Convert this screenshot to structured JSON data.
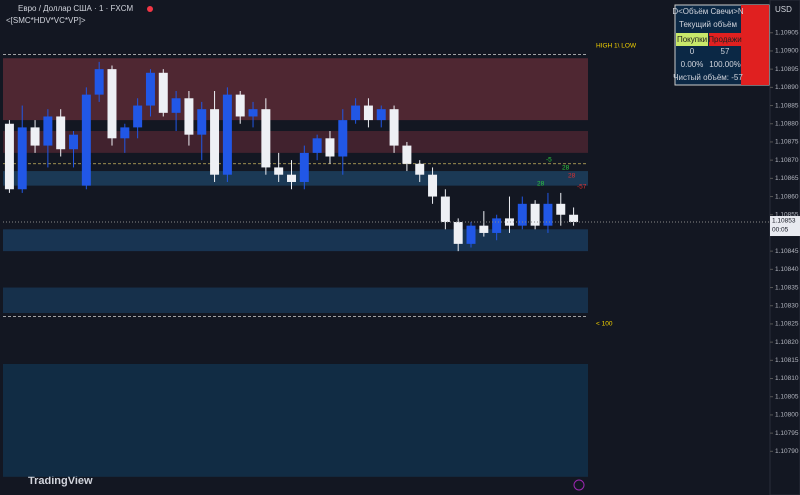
{
  "header": {
    "symbol": "Евро / Доллар США · 1 · FXCM",
    "indicator": "<[SMC*HDV*VC*VP]>"
  },
  "chart_data": {
    "type": "candlestick",
    "currency": "USD",
    "ylim": [
      1.10778,
      1.10914
    ],
    "yticks": [
      1.10905,
      {
        "value": 1.109,
        "label": "1.10900"
      },
      1.10895,
      {
        "value": 1.1089,
        "label": "1.10890"
      },
      1.10885,
      {
        "value": 1.1088,
        "label": "1.10880"
      },
      1.10875,
      {
        "value": 1.1087,
        "label": "1.10870"
      },
      1.10865,
      {
        "value": 1.1086,
        "label": "1.10860"
      },
      1.10855,
      {
        "value": 1.1085,
        "label": "1.10850"
      },
      1.10845,
      {
        "value": 1.1084,
        "label": "1.10840"
      },
      1.10835,
      {
        "value": 1.1083,
        "label": "1.10830"
      },
      1.10825,
      {
        "value": 1.1082,
        "label": "1.10820"
      },
      1.10815,
      {
        "value": 1.1081,
        "label": "1.10810"
      },
      1.10805,
      {
        "value": 1.108,
        "label": "1.10800"
      },
      1.10795,
      {
        "value": 1.1079,
        "label": "1.10790"
      }
    ],
    "open": [
      1.1088,
      1.10862,
      1.10879,
      1.10874,
      1.10882,
      1.10873,
      1.10863,
      1.10888,
      1.10895,
      1.10876,
      1.10879,
      1.10885,
      1.10894,
      1.10883,
      1.10887,
      1.10877,
      1.10884,
      1.10866,
      1.10888,
      1.10882,
      1.10884,
      1.10868,
      1.10866,
      1.10864,
      1.10872,
      1.10876,
      1.10871,
      1.10881,
      1.10885,
      1.10881,
      1.10884,
      1.10874,
      1.10869,
      1.10866,
      1.1086,
      1.10853,
      1.10847,
      1.10852,
      1.1085,
      1.10854,
      1.10852,
      1.10858,
      1.10852,
      1.10858,
      1.10855
    ],
    "high": [
      1.10881,
      1.10885,
      1.10881,
      1.10884,
      1.10884,
      1.10878,
      1.1089,
      1.10897,
      1.10896,
      1.1088,
      1.10887,
      1.10895,
      1.10895,
      1.10889,
      1.10889,
      1.10886,
      1.10889,
      1.1089,
      1.10889,
      1.10886,
      1.10887,
      1.10872,
      1.1087,
      1.10874,
      1.10877,
      1.10878,
      1.10884,
      1.10887,
      1.10887,
      1.10885,
      1.10885,
      1.10875,
      1.1087,
      1.10868,
      1.10862,
      1.10854,
      1.10853,
      1.10856,
      1.10855,
      1.1086,
      1.1086,
      1.10859,
      1.10861,
      1.10861,
      1.10857
    ],
    "low": [
      1.10861,
      1.10861,
      1.10872,
      1.10868,
      1.10871,
      1.10868,
      1.10862,
      1.10886,
      1.10874,
      1.10872,
      1.10876,
      1.10882,
      1.10882,
      1.10878,
      1.10874,
      1.1087,
      1.10864,
      1.10864,
      1.1088,
      1.10879,
      1.10866,
      1.10864,
      1.10862,
      1.10862,
      1.1087,
      1.10869,
      1.10866,
      1.1088,
      1.10879,
      1.10879,
      1.10872,
      1.10867,
      1.10864,
      1.10858,
      1.10851,
      1.10845,
      1.10846,
      1.10849,
      1.10848,
      1.1085,
      1.10851,
      1.10851,
      1.1085,
      1.10852,
      1.10852
    ],
    "close": [
      1.10862,
      1.10879,
      1.10874,
      1.10882,
      1.10873,
      1.10877,
      1.10888,
      1.10895,
      1.10876,
      1.10879,
      1.10885,
      1.10894,
      1.10883,
      1.10887,
      1.10877,
      1.10884,
      1.10866,
      1.10888,
      1.10882,
      1.10884,
      1.10868,
      1.10866,
      1.10864,
      1.10872,
      1.10876,
      1.10871,
      1.10881,
      1.10885,
      1.10881,
      1.10884,
      1.10874,
      1.10869,
      1.10866,
      1.1086,
      1.10853,
      1.10847,
      1.10852,
      1.1085,
      1.10854,
      1.10852,
      1.10858,
      1.10852,
      1.10858,
      1.10855,
      1.10853
    ],
    "up_color": "#2157e6",
    "down_color": "#eef0f5",
    "zones": [
      {
        "low": 1.10881,
        "high": 1.10898,
        "color": "#5a2a35"
      },
      {
        "low": 1.10872,
        "high": 1.10878,
        "color": "#4a2430"
      },
      {
        "low": 1.10863,
        "high": 1.10867,
        "color": "#1d3f5e"
      },
      {
        "low": 1.10845,
        "high": 1.10851,
        "color": "#1a3a5a"
      },
      {
        "low": 1.10828,
        "high": 1.10835,
        "color": "#173552"
      },
      {
        "low": 1.10783,
        "high": 1.10814,
        "color": "#12304a"
      }
    ],
    "levels": [
      1.10899,
      1.10869,
      1.10827
    ],
    "last_price": 1.10853,
    "countdown": "00:05",
    "annotations": [
      "HIGH 1\\ LOW",
      "< 100",
      "-5",
      "28",
      "28",
      "28",
      "-57"
    ]
  },
  "volume_table": {
    "title": "D<Объём Свечи>N",
    "subtitle": "Текущий объём",
    "buy_label": "Покупки",
    "sell_label": "Продажи",
    "buy": "0",
    "sell": "57",
    "buy_pct": "0.00%",
    "sell_pct": "100.00%",
    "net": "Чистый объём: -57"
  },
  "footer": {
    "logo": "TradingView"
  }
}
